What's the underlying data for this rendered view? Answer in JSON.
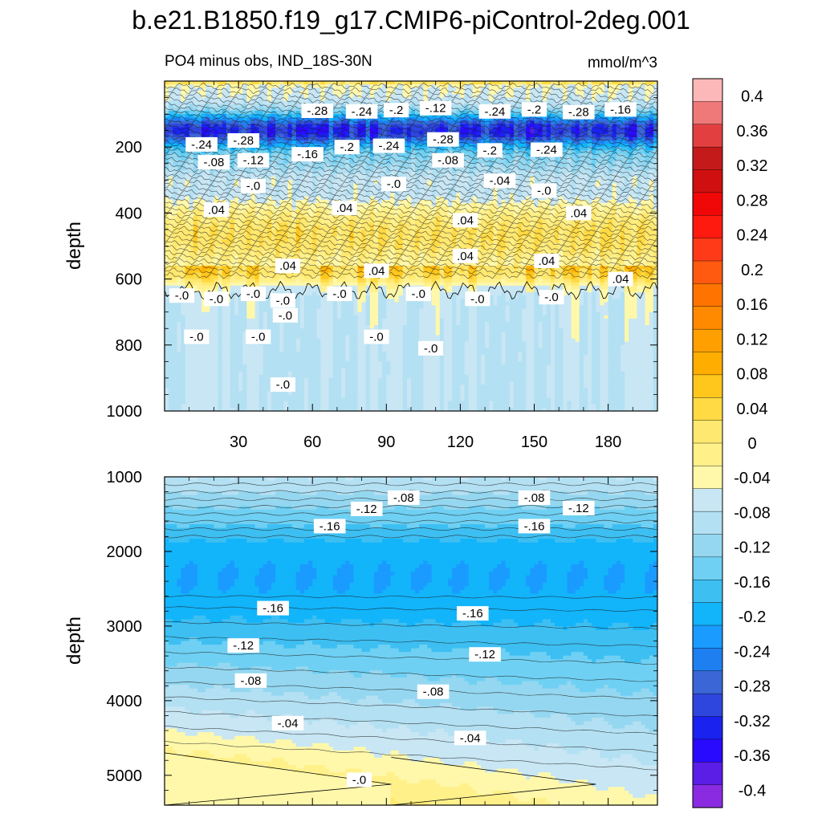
{
  "chart_data": {
    "type": "contour",
    "title": "b.e21.B1850.f19_g17.CMIP6-piControl-2deg.001",
    "subtitle_left": "PO4 minus obs, IND_18S-30N",
    "units": "mmol/m^3",
    "colors": {
      "neg": [
        "#8a2be2",
        "#5a1ee6",
        "#2a0aff",
        "#1a22f0",
        "#2e46dd",
        "#3a66d6",
        "#1e80f0",
        "#1a9bff",
        "#12b4fa",
        "#3dbff2",
        "#6fd0f3",
        "#95d7f0",
        "#b3e0f2",
        "#c8e6f4"
      ],
      "pos": [
        "#fff8aa",
        "#fff08a",
        "#ffe870",
        "#ffda44",
        "#ffc61c",
        "#ffae00",
        "#ffa000",
        "#ff8a00",
        "#ff7400",
        "#ff5a10",
        "#ff3a18",
        "#ff1a10",
        "#f00808",
        "#d01010",
        "#c51a1a",
        "#e24040",
        "#ef7878",
        "#fcb8b8"
      ]
    },
    "colorbar": {
      "tick_labels": [
        "0.4",
        "0.36",
        "0.32",
        "0.28",
        "0.24",
        "0.2",
        "0.16",
        "0.12",
        "0.08",
        "0.04",
        "0",
        "-0.04",
        "-0.08",
        "-0.12",
        "-0.16",
        "-0.2",
        "-0.24",
        "-0.28",
        "-0.32",
        "-0.36",
        "-0.4"
      ],
      "range": [
        -0.42,
        0.42
      ]
    },
    "panels": [
      {
        "name": "upper",
        "ylabel": "depth",
        "ylim": [
          0,
          1000
        ],
        "xlim": [
          0,
          200
        ],
        "x_ticks": [
          30,
          60,
          90,
          120,
          150,
          180
        ],
        "x_tick_labels": [
          "30",
          "60",
          "90",
          "120",
          "150",
          "180"
        ],
        "y_ticks": [
          200,
          400,
          600,
          800,
          1000
        ],
        "y_tick_labels": [
          "200",
          "400",
          "600",
          "800",
          "1000"
        ],
        "contour_labels": [
          {
            "text": "-.28",
            "x": 62,
            "y": 90
          },
          {
            "text": "-.24",
            "x": 80,
            "y": 92
          },
          {
            "text": "-.2",
            "x": 94,
            "y": 88
          },
          {
            "text": "-.12",
            "x": 110,
            "y": 82
          },
          {
            "text": "-.24",
            "x": 134,
            "y": 92
          },
          {
            "text": "-.2",
            "x": 150,
            "y": 86
          },
          {
            "text": "-.28",
            "x": 168,
            "y": 94
          },
          {
            "text": "-.16",
            "x": 185,
            "y": 86
          },
          {
            "text": "-.24",
            "x": 15,
            "y": 192
          },
          {
            "text": "-.28",
            "x": 32,
            "y": 180
          },
          {
            "text": "-.16",
            "x": 58,
            "y": 222
          },
          {
            "text": "-.2",
            "x": 74,
            "y": 200
          },
          {
            "text": "-.24",
            "x": 91,
            "y": 196
          },
          {
            "text": "-.28",
            "x": 113,
            "y": 177
          },
          {
            "text": "-.2",
            "x": 132,
            "y": 210
          },
          {
            "text": "-.24",
            "x": 155,
            "y": 208
          },
          {
            "text": "-.08",
            "x": 20,
            "y": 246
          },
          {
            "text": "-.12",
            "x": 36,
            "y": 240
          },
          {
            "text": "-.08",
            "x": 115,
            "y": 240
          },
          {
            "text": "-.04",
            "x": 136,
            "y": 302
          },
          {
            "text": "-.0",
            "x": 36,
            "y": 318
          },
          {
            "text": "-.0",
            "x": 93,
            "y": 312
          },
          {
            "text": "-.0",
            "x": 154,
            "y": 332
          },
          {
            "text": ".04",
            "x": 21,
            "y": 390
          },
          {
            "text": ".04",
            "x": 73,
            "y": 385
          },
          {
            "text": ".04",
            "x": 122,
            "y": 422
          },
          {
            "text": ".04",
            "x": 168,
            "y": 400
          },
          {
            "text": ".04",
            "x": 50,
            "y": 560
          },
          {
            "text": ".04",
            "x": 86,
            "y": 575
          },
          {
            "text": ".04",
            "x": 122,
            "y": 530
          },
          {
            "text": ".04",
            "x": 155,
            "y": 545
          },
          {
            "text": ".04",
            "x": 185,
            "y": 600
          },
          {
            "text": "-.0",
            "x": 7,
            "y": 650
          },
          {
            "text": "-.0",
            "x": 21,
            "y": 660
          },
          {
            "text": "-.0",
            "x": 36,
            "y": 645
          },
          {
            "text": "-.0",
            "x": 48,
            "y": 665
          },
          {
            "text": "-.0",
            "x": 71,
            "y": 645
          },
          {
            "text": "-.0",
            "x": 103,
            "y": 645
          },
          {
            "text": "-.0",
            "x": 127,
            "y": 660
          },
          {
            "text": "-.0",
            "x": 157,
            "y": 655
          },
          {
            "text": "-.0",
            "x": 13,
            "y": 775
          },
          {
            "text": "-.0",
            "x": 38,
            "y": 775
          },
          {
            "text": "-.0",
            "x": 49,
            "y": 710
          },
          {
            "text": "-.0",
            "x": 86,
            "y": 775
          },
          {
            "text": "-.0",
            "x": 108,
            "y": 810
          },
          {
            "text": "-.0",
            "x": 48,
            "y": 920
          }
        ]
      },
      {
        "name": "lower",
        "ylabel": "depth",
        "ylim": [
          1000,
          5400
        ],
        "xlim": [
          0,
          200
        ],
        "y_ticks": [
          1000,
          2000,
          3000,
          4000,
          5000
        ],
        "y_tick_labels": [
          "1000",
          "2000",
          "3000",
          "4000",
          "5000"
        ],
        "contour_labels": [
          {
            "text": "-.08",
            "x": 97,
            "y": 1280
          },
          {
            "text": "-.08",
            "x": 150,
            "y": 1280
          },
          {
            "text": "-.12",
            "x": 82,
            "y": 1430
          },
          {
            "text": "-.12",
            "x": 168,
            "y": 1420
          },
          {
            "text": "-.16",
            "x": 67,
            "y": 1660
          },
          {
            "text": "-.16",
            "x": 150,
            "y": 1660
          },
          {
            "text": "-.16",
            "x": 44,
            "y": 2760
          },
          {
            "text": "-.16",
            "x": 125,
            "y": 2830
          },
          {
            "text": "-.12",
            "x": 32,
            "y": 3260
          },
          {
            "text": "-.12",
            "x": 130,
            "y": 3380
          },
          {
            "text": "-.08",
            "x": 35,
            "y": 3730
          },
          {
            "text": "-.08",
            "x": 109,
            "y": 3880
          },
          {
            "text": "-.04",
            "x": 50,
            "y": 4300
          },
          {
            "text": "-.04",
            "x": 124,
            "y": 4500
          },
          {
            "text": "-.0",
            "x": 79,
            "y": 5060
          }
        ]
      }
    ]
  }
}
